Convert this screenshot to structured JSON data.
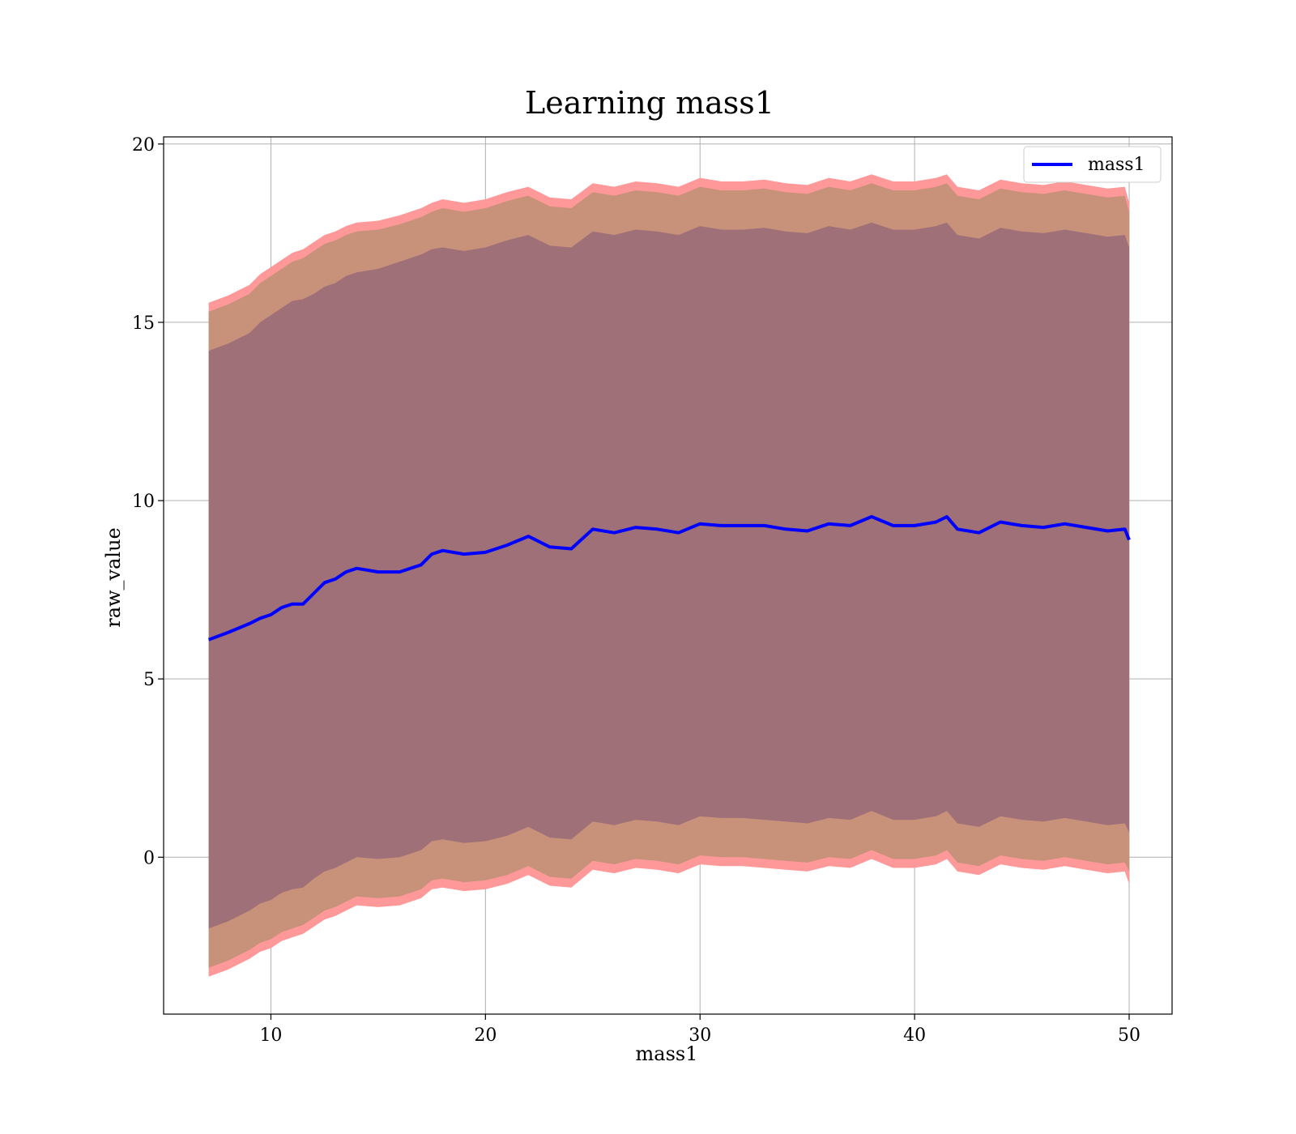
{
  "chart_data": {
    "type": "line",
    "title": "Learning mass1",
    "xlabel": "mass1",
    "ylabel": "raw_value",
    "xlim": [
      5,
      52
    ],
    "ylim": [
      -4.4,
      20.2
    ],
    "xticks": [
      10,
      20,
      30,
      40,
      50
    ],
    "yticks": [
      0,
      5,
      10,
      15,
      20
    ],
    "grid": true,
    "legend": {
      "position": "top-right",
      "entries": [
        "mass1"
      ]
    },
    "colors": {
      "line": "#0000ff",
      "band_outer": "#ff9999",
      "band_middle": "#c8917a",
      "band_inner": "#a07078",
      "grid": "#b0b0b0"
    },
    "series": [
      {
        "name": "mass1",
        "x": [
          7.1,
          8,
          9,
          9.5,
          10,
          10.5,
          11,
          11.5,
          12,
          12.5,
          13,
          13.5,
          14,
          15,
          16,
          17,
          17.5,
          18,
          19,
          20,
          21,
          22,
          23,
          24,
          25,
          26,
          27,
          28,
          29,
          30,
          31,
          32,
          33,
          34,
          35,
          36,
          37,
          38,
          39,
          40,
          41,
          41.5,
          42,
          43,
          44,
          45,
          46,
          47,
          48,
          49,
          49.8,
          50
        ],
        "mean": [
          6.1,
          6.3,
          6.55,
          6.7,
          6.8,
          7.0,
          7.1,
          7.1,
          7.4,
          7.7,
          7.8,
          8.0,
          8.1,
          8.0,
          8.0,
          8.2,
          8.5,
          8.6,
          8.5,
          8.55,
          8.75,
          9.0,
          8.7,
          8.65,
          9.2,
          9.1,
          9.25,
          9.2,
          9.1,
          9.35,
          9.3,
          9.3,
          9.3,
          9.2,
          9.15,
          9.35,
          9.3,
          9.55,
          9.3,
          9.3,
          9.4,
          9.55,
          9.2,
          9.1,
          9.4,
          9.3,
          9.25,
          9.35,
          9.25,
          9.15,
          9.2,
          8.9
        ],
        "inner_upper": [
          14.2,
          14.4,
          14.7,
          15.0,
          15.2,
          15.4,
          15.6,
          15.65,
          15.8,
          16.0,
          16.1,
          16.3,
          16.4,
          16.5,
          16.7,
          16.9,
          17.05,
          17.1,
          17.0,
          17.1,
          17.3,
          17.45,
          17.15,
          17.1,
          17.55,
          17.45,
          17.6,
          17.55,
          17.45,
          17.7,
          17.6,
          17.6,
          17.65,
          17.55,
          17.5,
          17.7,
          17.6,
          17.8,
          17.6,
          17.6,
          17.7,
          17.8,
          17.45,
          17.35,
          17.65,
          17.55,
          17.5,
          17.6,
          17.5,
          17.4,
          17.45,
          17.1
        ],
        "inner_lower": [
          -2.0,
          -1.8,
          -1.5,
          -1.3,
          -1.2,
          -1.0,
          -0.9,
          -0.85,
          -0.6,
          -0.4,
          -0.3,
          -0.15,
          0.0,
          -0.05,
          0.0,
          0.2,
          0.45,
          0.5,
          0.4,
          0.45,
          0.6,
          0.85,
          0.55,
          0.5,
          1.0,
          0.9,
          1.05,
          1.0,
          0.9,
          1.15,
          1.1,
          1.1,
          1.05,
          1.0,
          0.95,
          1.1,
          1.05,
          1.3,
          1.05,
          1.05,
          1.15,
          1.3,
          0.95,
          0.85,
          1.15,
          1.05,
          1.0,
          1.1,
          1.0,
          0.9,
          0.95,
          0.7
        ],
        "middle_upper": [
          15.3,
          15.5,
          15.8,
          16.1,
          16.3,
          16.5,
          16.7,
          16.8,
          17.0,
          17.2,
          17.3,
          17.45,
          17.55,
          17.6,
          17.75,
          17.95,
          18.1,
          18.2,
          18.1,
          18.2,
          18.4,
          18.55,
          18.25,
          18.2,
          18.65,
          18.55,
          18.7,
          18.65,
          18.55,
          18.8,
          18.7,
          18.7,
          18.75,
          18.65,
          18.6,
          18.8,
          18.7,
          18.9,
          18.7,
          18.7,
          18.8,
          18.9,
          18.55,
          18.45,
          18.75,
          18.65,
          18.6,
          18.7,
          18.6,
          18.5,
          18.55,
          18.1
        ],
        "middle_lower": [
          -3.1,
          -2.9,
          -2.6,
          -2.4,
          -2.3,
          -2.1,
          -2.0,
          -1.9,
          -1.7,
          -1.5,
          -1.4,
          -1.25,
          -1.1,
          -1.15,
          -1.1,
          -0.9,
          -0.65,
          -0.6,
          -0.7,
          -0.65,
          -0.5,
          -0.25,
          -0.55,
          -0.6,
          -0.1,
          -0.2,
          -0.05,
          -0.1,
          -0.2,
          0.05,
          0.0,
          0.0,
          -0.05,
          -0.1,
          -0.15,
          0.0,
          -0.05,
          0.2,
          -0.05,
          -0.05,
          0.05,
          0.2,
          -0.15,
          -0.25,
          0.05,
          -0.05,
          -0.1,
          0.0,
          -0.1,
          -0.2,
          -0.15,
          -0.4
        ],
        "outer_upper": [
          15.55,
          15.75,
          16.05,
          16.35,
          16.55,
          16.75,
          16.95,
          17.05,
          17.25,
          17.45,
          17.55,
          17.7,
          17.8,
          17.85,
          18.0,
          18.2,
          18.35,
          18.45,
          18.35,
          18.45,
          18.65,
          18.8,
          18.5,
          18.45,
          18.9,
          18.8,
          18.95,
          18.9,
          18.8,
          19.05,
          18.95,
          18.95,
          19.0,
          18.9,
          18.85,
          19.05,
          18.95,
          19.15,
          18.95,
          18.95,
          19.05,
          19.15,
          18.8,
          18.7,
          19.0,
          18.9,
          18.85,
          18.95,
          18.85,
          18.75,
          18.8,
          18.35
        ],
        "outer_lower": [
          -3.35,
          -3.15,
          -2.85,
          -2.65,
          -2.55,
          -2.35,
          -2.25,
          -2.15,
          -1.95,
          -1.75,
          -1.65,
          -1.5,
          -1.35,
          -1.4,
          -1.35,
          -1.15,
          -0.9,
          -0.85,
          -0.95,
          -0.9,
          -0.75,
          -0.5,
          -0.8,
          -0.85,
          -0.35,
          -0.45,
          -0.3,
          -0.35,
          -0.45,
          -0.2,
          -0.25,
          -0.25,
          -0.3,
          -0.35,
          -0.4,
          -0.25,
          -0.3,
          -0.05,
          -0.3,
          -0.3,
          -0.2,
          -0.05,
          -0.4,
          -0.5,
          -0.2,
          -0.3,
          -0.35,
          -0.25,
          -0.35,
          -0.45,
          -0.4,
          -0.75
        ]
      }
    ]
  }
}
